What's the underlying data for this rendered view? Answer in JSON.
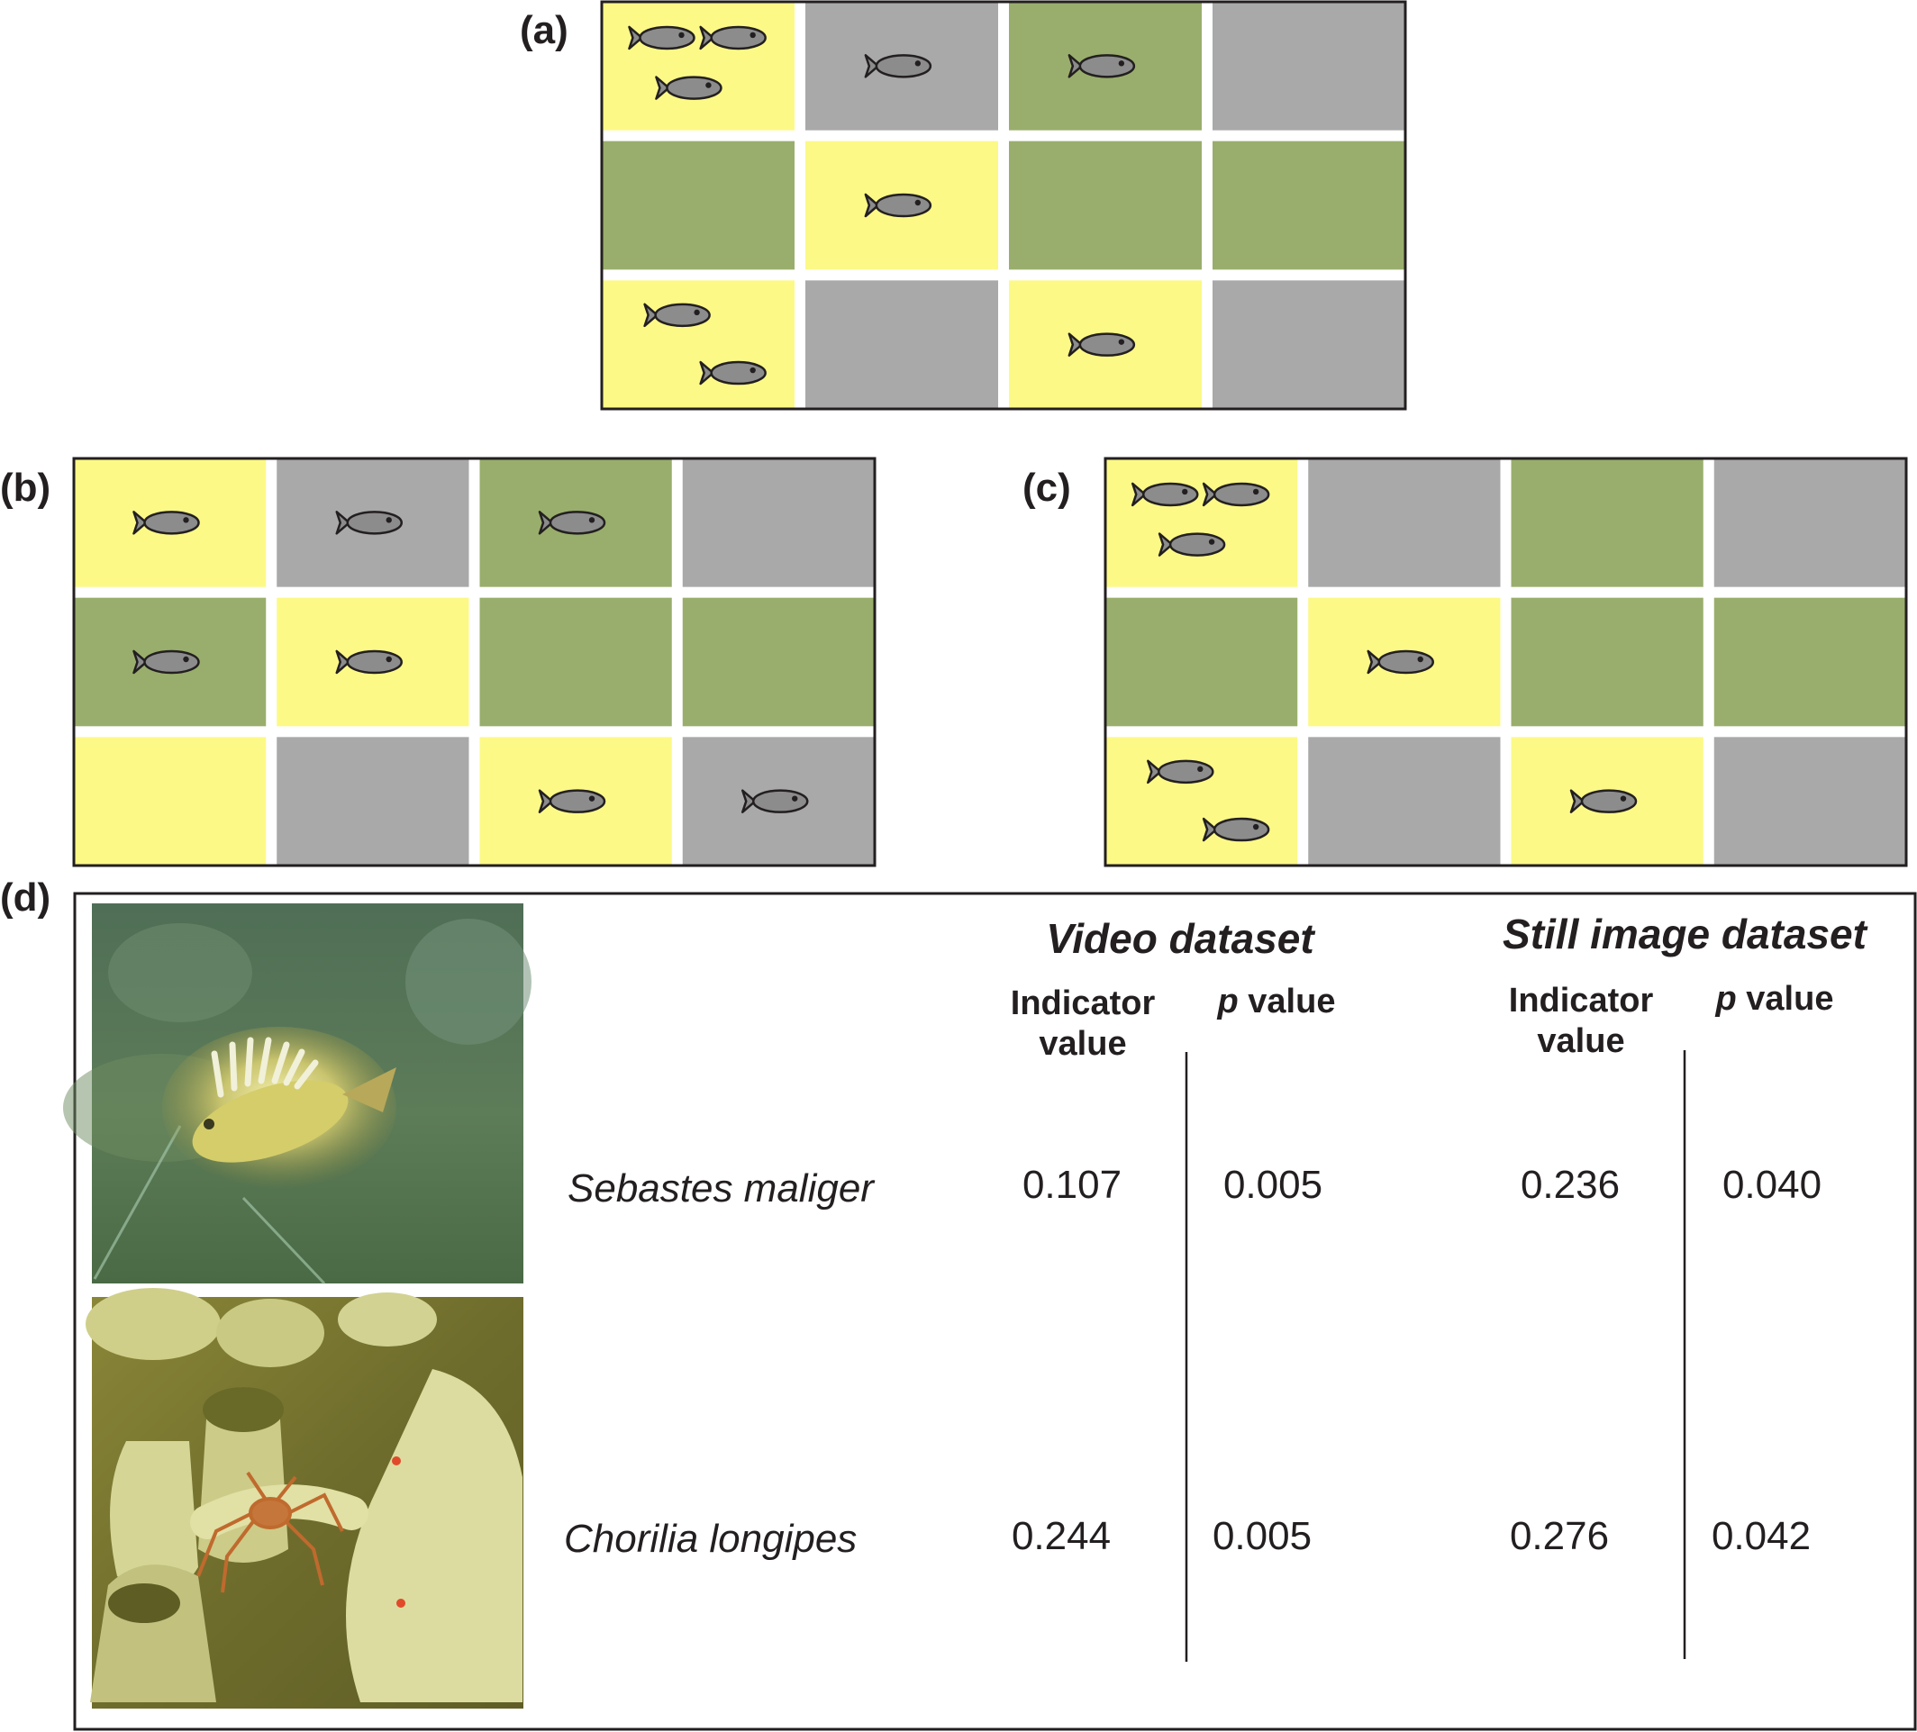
{
  "colors": {
    "yellow": "#fcf987",
    "grey": "#a9a9a9",
    "green": "#99ae6c",
    "fish_body": "#8c8c8c",
    "outline": "#231f20"
  },
  "panels": [
    {
      "label": "(a)",
      "cells": [
        "yellow",
        "grey",
        "green",
        "grey",
        "green",
        "yellow",
        "green",
        "green",
        "yellow",
        "grey",
        "yellow",
        "grey"
      ],
      "fish_counts": [
        3,
        1,
        1,
        0,
        0,
        1,
        0,
        0,
        2,
        0,
        1,
        0
      ]
    },
    {
      "label": "(b)",
      "cells": [
        "yellow",
        "grey",
        "green",
        "grey",
        "green",
        "yellow",
        "green",
        "green",
        "yellow",
        "grey",
        "yellow",
        "grey"
      ],
      "fish_counts": [
        1,
        1,
        1,
        0,
        1,
        1,
        0,
        0,
        0,
        0,
        1,
        1
      ]
    },
    {
      "label": "(c)",
      "cells": [
        "yellow",
        "grey",
        "green",
        "grey",
        "green",
        "yellow",
        "green",
        "green",
        "yellow",
        "grey",
        "yellow",
        "grey"
      ],
      "fish_counts": [
        3,
        0,
        0,
        0,
        0,
        1,
        0,
        0,
        2,
        0,
        1,
        0
      ]
    }
  ],
  "table": {
    "panel_label": "(d)",
    "video_header": "Video dataset",
    "still_header": "Still image dataset",
    "indicator_line1": "Indicator",
    "indicator_line2": "value",
    "p_letter": "p",
    "p_word": " value",
    "rows": [
      {
        "species": "Sebastes maliger",
        "video_iv": "0.107",
        "video_p": "0.005",
        "still_iv": "0.236",
        "still_p": "0.040"
      },
      {
        "species": "Chorilia longipes",
        "video_iv": "0.244",
        "video_p": "0.005",
        "still_iv": "0.276",
        "still_p": "0.042"
      }
    ],
    "photo_subjects": [
      "rockfish-photo",
      "crab-on-sponge-photo"
    ]
  }
}
